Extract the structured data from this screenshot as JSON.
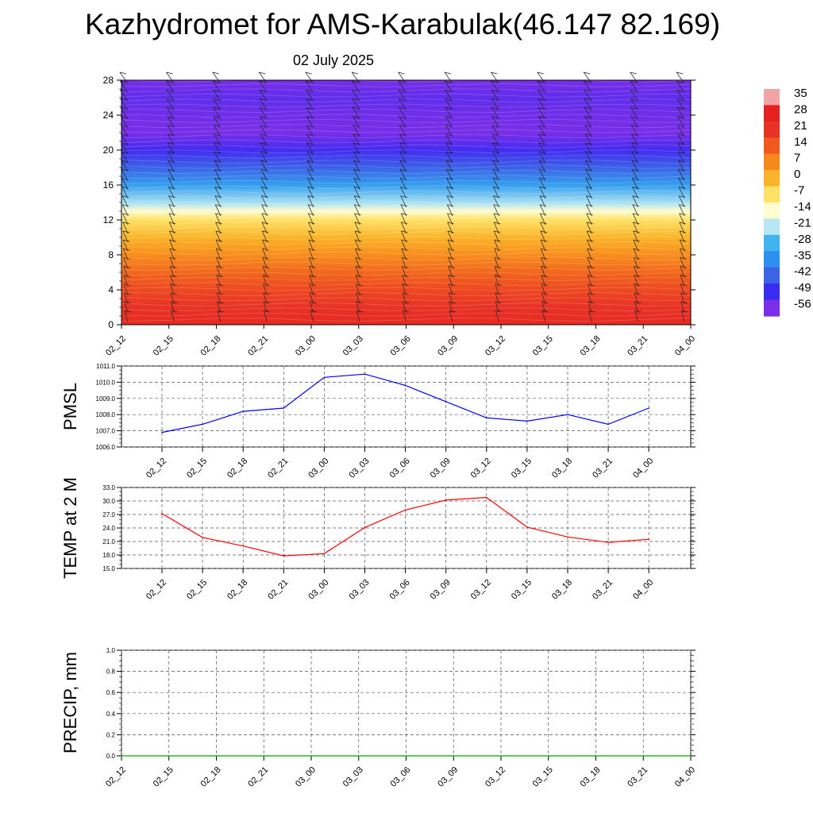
{
  "title": "Kazhydromet for AMS-Karabulak(46.147 82.169)",
  "subtitle": "02 July 2025",
  "chart_data": [
    {
      "type": "heatmap",
      "name": "temperature-height-section",
      "x_labels": [
        "02_12",
        "02_15",
        "02_18",
        "02_21",
        "03_00",
        "03_03",
        "03_06",
        "03_09",
        "03_12",
        "03_15",
        "03_18",
        "03_21",
        "04_00"
      ],
      "y_ticks": [
        "0",
        "4",
        "8",
        "12",
        "16",
        "20",
        "24",
        "28"
      ],
      "ylim": [
        0,
        28
      ],
      "colorbar": {
        "labels": [
          "35",
          "28",
          "21",
          "14",
          "7",
          "0",
          "-7",
          "-14",
          "-21",
          "-28",
          "-35",
          "-42",
          "-49",
          "-56"
        ],
        "colors": [
          "#f2a3a3",
          "#e42020",
          "#e83226",
          "#f05a1e",
          "#f7881c",
          "#fbb42a",
          "#ffe166",
          "#fffcd0",
          "#b8e6f3",
          "#3fb4ee",
          "#2d8fee",
          "#3c62e6",
          "#3a2df2",
          "#7a2ee8"
        ]
      },
      "temperature_levels": [
        {
          "level": 0,
          "t": 24
        },
        {
          "level": 2,
          "t": 21
        },
        {
          "level": 4,
          "t": 17
        },
        {
          "level": 6,
          "t": 12
        },
        {
          "level": 8,
          "t": 6
        },
        {
          "level": 10,
          "t": 0
        },
        {
          "level": 12,
          "t": -7
        },
        {
          "level": 13,
          "t": -14
        },
        {
          "level": 14,
          "t": -22
        },
        {
          "level": 16,
          "t": -32
        },
        {
          "level": 18,
          "t": -42
        },
        {
          "level": 20,
          "t": -50
        },
        {
          "level": 22,
          "t": -56
        },
        {
          "level": 24,
          "t": -55
        },
        {
          "level": 26,
          "t": -53
        },
        {
          "level": 28,
          "t": -56
        }
      ],
      "grid": false
    },
    {
      "type": "line",
      "ylabel": "PMSL",
      "x": [
        "02_12",
        "02_15",
        "02_18",
        "02_21",
        "03_00",
        "03_03",
        "03_06",
        "03_09",
        "03_12",
        "03_15",
        "03_18",
        "03_21",
        "04_00"
      ],
      "values": [
        1006.9,
        1007.4,
        1008.2,
        1008.4,
        1010.3,
        1010.5,
        1009.8,
        1008.8,
        1007.8,
        1007.6,
        1008.0,
        1007.4,
        1008.4
      ],
      "ylim": [
        1006.0,
        1011.0
      ],
      "y_ticks": [
        "1006.0",
        "1007.0",
        "1008.0",
        "1009.0",
        "1010.0",
        "1011.0"
      ],
      "color": "#0000ff",
      "grid": true
    },
    {
      "type": "line",
      "ylabel": "TEMP at 2 M",
      "x": [
        "02_12",
        "02_15",
        "02_18",
        "02_21",
        "03_00",
        "03_03",
        "03_06",
        "03_09",
        "03_12",
        "03_15",
        "03_18",
        "03_21",
        "04_00"
      ],
      "values": [
        27.2,
        21.9,
        20.0,
        17.8,
        18.3,
        24.1,
        28.0,
        30.2,
        30.8,
        24.2,
        22.0,
        20.8,
        21.5
      ],
      "ylim": [
        15.0,
        33.0
      ],
      "y_ticks": [
        "15.0",
        "18.0",
        "21.0",
        "24.0",
        "27.0",
        "30.0",
        "33.0"
      ],
      "color": "#ff0000",
      "grid": true
    },
    {
      "type": "line",
      "ylabel": "PRECIP, mm",
      "x": [
        "02_12",
        "02_15",
        "02_18",
        "02_21",
        "03_00",
        "03_03",
        "03_06",
        "03_09",
        "03_12",
        "03_15",
        "03_18",
        "03_21",
        "04_00"
      ],
      "values": [
        0,
        0,
        0,
        0,
        0,
        0,
        0,
        0,
        0,
        0,
        0,
        0,
        0
      ],
      "ylim": [
        0.0,
        1.0
      ],
      "y_ticks": [
        "0.0",
        "0.2",
        "0.4",
        "0.6",
        "0.8",
        "1.0"
      ],
      "color": "#00aa00",
      "grid": true
    }
  ]
}
